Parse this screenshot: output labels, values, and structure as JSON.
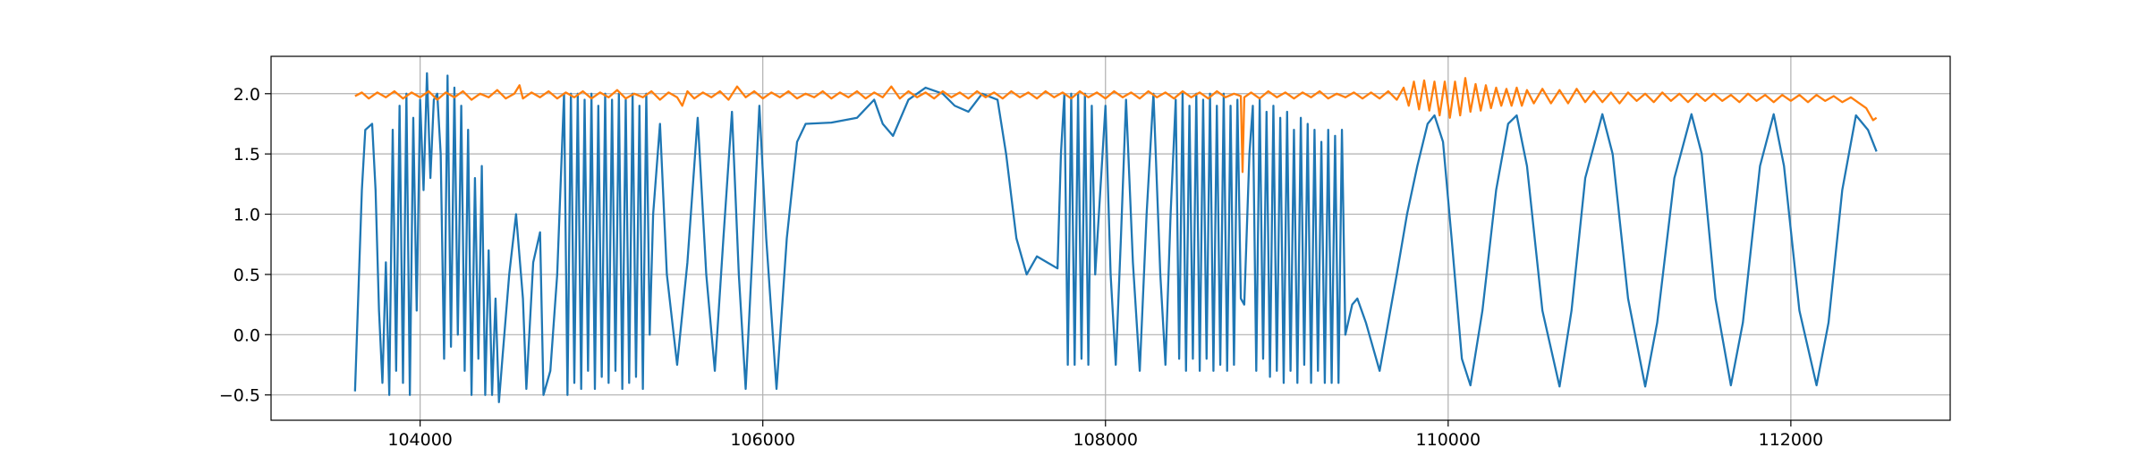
{
  "chart_data": {
    "type": "line",
    "xlim": [
      103130,
      112930
    ],
    "ylim": [
      -0.71,
      2.31
    ],
    "xticks": [
      104000,
      106000,
      108000,
      110000,
      112000
    ],
    "yticks": [
      {
        "value": -0.5,
        "label": "−0.5"
      },
      {
        "value": 0.0,
        "label": "0.0"
      },
      0.5,
      {
        "value": 1.0,
        "label": "1.0"
      },
      1.5,
      {
        "value": 2.0,
        "label": "2.0"
      }
    ],
    "grid": true,
    "series": [
      {
        "color": "#1f77b4",
        "x": [
          103620,
          103660,
          103680,
          103720,
          103740,
          103760,
          103780,
          103800,
          103820,
          103840,
          103860,
          103880,
          103900,
          103920,
          103940,
          103960,
          103980,
          104000,
          104020,
          104040,
          104060,
          104080,
          104100,
          104120,
          104140,
          104160,
          104180,
          104200,
          104220,
          104240,
          104260,
          104280,
          104300,
          104320,
          104340,
          104360,
          104380,
          104400,
          104420,
          104440,
          104460,
          104480,
          104520,
          104560,
          104600,
          104620,
          104660,
          104700,
          104720,
          104760,
          104800,
          104840,
          104860,
          104880,
          104900,
          104920,
          104940,
          104960,
          104980,
          105000,
          105020,
          105040,
          105060,
          105080,
          105100,
          105120,
          105140,
          105160,
          105180,
          105200,
          105220,
          105240,
          105260,
          105280,
          105300,
          105320,
          105340,
          105360,
          105400,
          105440,
          105500,
          105560,
          105620,
          105670,
          105720,
          105770,
          105820,
          105860,
          105900,
          105940,
          105980,
          106020,
          106080,
          106140,
          106200,
          106250,
          106400,
          106550,
          106650,
          106700,
          106760,
          106850,
          106950,
          107050,
          107120,
          107200,
          107280,
          107370,
          107420,
          107480,
          107540,
          107600,
          107660,
          107720,
          107740,
          107760,
          107780,
          107800,
          107820,
          107840,
          107860,
          107880,
          107900,
          107920,
          107940,
          107970,
          108000,
          108030,
          108060,
          108090,
          108120,
          108160,
          108200,
          108240,
          108280,
          108320,
          108350,
          108380,
          108410,
          108430,
          108450,
          108470,
          108490,
          108510,
          108530,
          108550,
          108570,
          108590,
          108610,
          108630,
          108650,
          108670,
          108690,
          108710,
          108730,
          108750,
          108770,
          108790,
          108810,
          108840,
          108860,
          108880,
          108900,
          108920,
          108940,
          108960,
          108980,
          109000,
          109020,
          109040,
          109060,
          109080,
          109100,
          109120,
          109140,
          109160,
          109180,
          109200,
          109220,
          109240,
          109260,
          109280,
          109300,
          109320,
          109340,
          109360,
          109380,
          109400,
          109440,
          109470,
          109520,
          109560,
          109600,
          109650,
          109700,
          109760,
          109820,
          109880,
          109920,
          109970,
          110020,
          110080,
          110130,
          110200,
          110280,
          110350,
          110400,
          110460,
          110550,
          110650,
          110720,
          110800,
          110900,
          110960,
          111050,
          111150,
          111220,
          111320,
          111420,
          111480,
          111560,
          111650,
          111720,
          111820,
          111900,
          111960,
          112050,
          112150,
          112220,
          112300,
          112380,
          112450,
          112500
        ],
        "values": [
          -0.47,
          1.2,
          1.7,
          1.75,
          1.2,
          0.2,
          -0.4,
          0.6,
          -0.5,
          1.7,
          -0.3,
          1.9,
          -0.4,
          2.0,
          -0.5,
          1.8,
          0.2,
          1.95,
          1.2,
          2.17,
          1.3,
          1.95,
          2.0,
          1.5,
          -0.2,
          2.15,
          -0.1,
          2.05,
          0.0,
          1.9,
          -0.3,
          1.7,
          -0.5,
          1.3,
          -0.2,
          1.4,
          -0.5,
          0.7,
          -0.5,
          0.3,
          -0.56,
          -0.2,
          0.5,
          1.0,
          0.3,
          -0.45,
          0.6,
          0.85,
          -0.5,
          -0.3,
          0.5,
          2.0,
          -0.5,
          2.0,
          -0.4,
          2.0,
          -0.45,
          1.95,
          -0.3,
          2.0,
          -0.45,
          1.9,
          -0.35,
          2.0,
          -0.4,
          1.95,
          -0.3,
          2.0,
          -0.45,
          1.95,
          -0.4,
          2.0,
          -0.35,
          1.9,
          -0.45,
          2.0,
          0.0,
          1.0,
          1.75,
          0.5,
          -0.25,
          0.6,
          1.8,
          0.5,
          -0.3,
          0.8,
          1.85,
          0.5,
          -0.45,
          0.7,
          1.9,
          0.8,
          -0.45,
          0.8,
          1.6,
          1.75,
          1.76,
          1.8,
          1.95,
          1.75,
          1.65,
          1.95,
          2.05,
          2.0,
          1.9,
          1.85,
          2.0,
          1.95,
          1.5,
          0.8,
          0.5,
          0.65,
          0.6,
          0.55,
          1.5,
          2.0,
          -0.25,
          2.0,
          -0.25,
          2.0,
          -0.2,
          2.0,
          -0.25,
          1.9,
          0.5,
          1.2,
          1.9,
          0.5,
          -0.25,
          0.8,
          1.95,
          0.6,
          -0.3,
          1.0,
          2.0,
          0.5,
          -0.25,
          1.0,
          1.95,
          -0.2,
          2.0,
          -0.3,
          1.9,
          -0.2,
          2.0,
          -0.3,
          1.95,
          -0.2,
          2.0,
          -0.3,
          1.9,
          -0.25,
          2.0,
          -0.3,
          1.9,
          -0.25,
          1.95,
          0.3,
          0.25,
          1.5,
          1.9,
          -0.3,
          1.95,
          -0.2,
          1.85,
          -0.35,
          1.9,
          -0.3,
          1.8,
          -0.4,
          1.85,
          -0.3,
          1.7,
          -0.4,
          1.8,
          -0.25,
          1.75,
          -0.4,
          1.7,
          -0.3,
          1.6,
          -0.4,
          1.7,
          -0.4,
          1.65,
          -0.4,
          1.7,
          0.0,
          0.25,
          0.3,
          0.1,
          -0.1,
          -0.3,
          0.1,
          0.5,
          1.0,
          1.4,
          1.75,
          1.82,
          1.6,
          0.8,
          -0.2,
          -0.42,
          0.2,
          1.2,
          1.75,
          1.82,
          1.4,
          0.2,
          -0.43,
          0.2,
          1.3,
          1.83,
          1.5,
          0.3,
          -0.43,
          0.1,
          1.3,
          1.83,
          1.5,
          0.3,
          -0.42,
          0.1,
          1.4,
          1.83,
          1.4,
          0.2,
          -0.42,
          0.1,
          1.2,
          1.82,
          1.7,
          1.52
        ]
      },
      {
        "color": "#ff7f0e",
        "x": [
          103620,
          103660,
          103700,
          103750,
          103800,
          103850,
          103900,
          103950,
          104000,
          104050,
          104100,
          104150,
          104200,
          104250,
          104300,
          104350,
          104400,
          104450,
          104500,
          104550,
          104580,
          104600,
          104650,
          104700,
          104750,
          104800,
          104850,
          104900,
          104950,
          105000,
          105050,
          105100,
          105150,
          105200,
          105250,
          105300,
          105350,
          105400,
          105450,
          105500,
          105530,
          105560,
          105600,
          105650,
          105700,
          105750,
          105800,
          105850,
          105900,
          105950,
          106000,
          106050,
          106100,
          106150,
          106200,
          106250,
          106300,
          106350,
          106400,
          106450,
          106500,
          106550,
          106600,
          106650,
          106700,
          106750,
          106800,
          106850,
          106900,
          106950,
          107000,
          107050,
          107100,
          107150,
          107200,
          107250,
          107300,
          107350,
          107400,
          107450,
          107500,
          107550,
          107600,
          107650,
          107700,
          107750,
          107800,
          107850,
          107900,
          107950,
          108000,
          108050,
          108100,
          108150,
          108200,
          108250,
          108300,
          108350,
          108400,
          108450,
          108500,
          108550,
          108600,
          108650,
          108700,
          108750,
          108790,
          108800,
          108810,
          108850,
          108900,
          108950,
          109000,
          109050,
          109100,
          109150,
          109200,
          109250,
          109300,
          109350,
          109400,
          109450,
          109500,
          109550,
          109600,
          109650,
          109700,
          109740,
          109770,
          109800,
          109830,
          109860,
          109890,
          109920,
          109950,
          109980,
          110010,
          110040,
          110070,
          110100,
          110130,
          110160,
          110190,
          110220,
          110250,
          110280,
          110310,
          110340,
          110370,
          110400,
          110430,
          110460,
          110500,
          110550,
          110600,
          110650,
          110700,
          110750,
          110800,
          110850,
          110900,
          110950,
          111000,
          111050,
          111100,
          111150,
          111200,
          111250,
          111300,
          111350,
          111400,
          111450,
          111500,
          111550,
          111600,
          111650,
          111700,
          111750,
          111800,
          111850,
          111900,
          111950,
          112000,
          112050,
          112100,
          112150,
          112200,
          112250,
          112300,
          112350,
          112400,
          112440,
          112480,
          112500
        ],
        "values": [
          1.98,
          2.01,
          1.96,
          2.01,
          1.97,
          2.02,
          1.96,
          2.01,
          1.97,
          2.02,
          1.95,
          2.01,
          1.97,
          2.02,
          1.95,
          2.0,
          1.97,
          2.03,
          1.96,
          2.0,
          2.07,
          1.96,
          2.01,
          1.97,
          2.02,
          1.96,
          2.01,
          1.97,
          2.02,
          1.96,
          2.01,
          1.97,
          2.03,
          1.96,
          2.0,
          1.97,
          2.02,
          1.95,
          2.01,
          1.97,
          1.9,
          2.02,
          1.96,
          2.01,
          1.97,
          2.02,
          1.95,
          2.06,
          1.97,
          2.02,
          1.96,
          2.01,
          1.97,
          2.02,
          1.96,
          2.0,
          1.97,
          2.02,
          1.96,
          2.01,
          1.97,
          2.02,
          1.96,
          2.01,
          1.97,
          2.06,
          1.96,
          2.02,
          1.97,
          2.01,
          1.96,
          2.02,
          1.97,
          2.01,
          1.96,
          2.02,
          1.97,
          2.01,
          1.96,
          2.02,
          1.97,
          2.01,
          1.96,
          2.02,
          1.97,
          2.01,
          1.96,
          2.02,
          1.97,
          2.01,
          1.96,
          2.02,
          1.97,
          2.01,
          1.96,
          2.02,
          1.97,
          2.01,
          1.96,
          2.02,
          1.97,
          2.01,
          1.96,
          2.02,
          1.97,
          2.0,
          1.98,
          1.35,
          1.97,
          2.01,
          1.96,
          2.02,
          1.97,
          2.01,
          1.96,
          2.01,
          1.97,
          2.02,
          1.96,
          2.0,
          1.97,
          2.01,
          1.96,
          2.01,
          1.96,
          2.02,
          1.95,
          2.05,
          1.9,
          2.1,
          1.87,
          2.11,
          1.86,
          2.1,
          1.82,
          2.1,
          1.8,
          2.1,
          1.82,
          2.13,
          1.85,
          2.08,
          1.86,
          2.07,
          1.88,
          2.05,
          1.9,
          2.04,
          1.9,
          2.05,
          1.9,
          2.03,
          1.92,
          2.04,
          1.92,
          2.03,
          1.92,
          2.04,
          1.93,
          2.02,
          1.93,
          2.01,
          1.92,
          2.01,
          1.94,
          2.0,
          1.93,
          2.01,
          1.94,
          2.0,
          1.93,
          2.0,
          1.94,
          2.0,
          1.94,
          1.99,
          1.93,
          2.0,
          1.94,
          1.99,
          1.93,
          1.99,
          1.94,
          1.99,
          1.93,
          1.99,
          1.94,
          1.98,
          1.93,
          1.97,
          1.92,
          1.88,
          1.78,
          1.8
        ]
      }
    ]
  }
}
